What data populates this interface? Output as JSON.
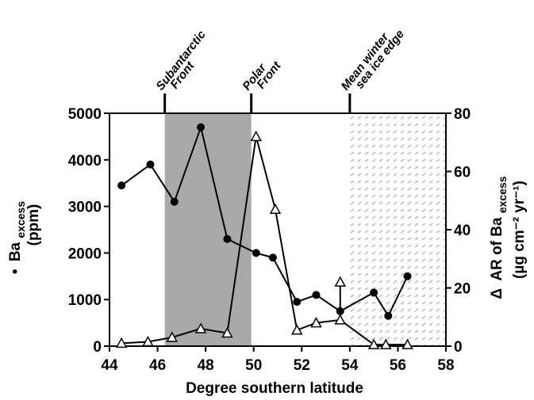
{
  "chart_data": {
    "type": "line",
    "xlabel": "Degree southern latitude",
    "ylabel_left_main": "Ba",
    "ylabel_left_sub": "excess",
    "ylabel_left_unit": "(ppm)",
    "ylabel_left_marker": "•",
    "ylabel_right_main": "AR of Ba",
    "ylabel_right_sub": "excess",
    "ylabel_right_marker": "Δ",
    "ylabel_right_unit": "(µg cm⁻² yr⁻¹)",
    "xlim": [
      44,
      58
    ],
    "ylim_left": [
      0,
      5000
    ],
    "ylim_right": [
      0,
      80
    ],
    "x_ticks": [
      "44",
      "46",
      "48",
      "50",
      "52",
      "54",
      "56",
      "58"
    ],
    "y_left_ticks": [
      "0",
      "1000",
      "2000",
      "3000",
      "4000",
      "5000"
    ],
    "y_right_ticks": [
      "0",
      "20",
      "40",
      "60",
      "80"
    ],
    "regions": [
      {
        "type": "shaded",
        "x_start": 46.3,
        "x_end": 49.9
      },
      {
        "type": "hatched",
        "x_start": 54.0,
        "x_end": 58.0
      }
    ],
    "front_markers": [
      {
        "x": 46.3,
        "lines": [
          "Subantarctic",
          "Front"
        ]
      },
      {
        "x": 49.9,
        "lines": [
          "Polar",
          "Front"
        ]
      },
      {
        "x": 54.0,
        "lines": [
          "Mean winter",
          "sea ice edge"
        ]
      }
    ],
    "series": [
      {
        "marker": "circle",
        "axis": "left",
        "x": [
          44.5,
          45.7,
          46.7,
          47.8,
          48.9,
          50.1,
          50.8,
          51.8,
          52.6,
          53.6,
          55.0,
          55.6,
          56.4
        ],
        "y": [
          3450,
          3900,
          3100,
          4700,
          2300,
          2000,
          1900,
          950,
          1100,
          750,
          1150,
          650,
          1500
        ]
      },
      {
        "marker": "triangle",
        "axis": "right",
        "x": [
          44.5,
          45.6,
          46.6,
          47.8,
          48.9,
          50.1,
          50.9,
          51.8,
          52.6,
          53.6,
          55.0,
          55.5,
          56.4
        ],
        "y": [
          1,
          1.5,
          3,
          6,
          4.5,
          72,
          47,
          5.5,
          8,
          9,
          0.5,
          0.5,
          0.5
        ]
      }
    ],
    "error_bar": {
      "x": 53.6,
      "y_low": 9,
      "y_high": 22,
      "axis": "right"
    }
  }
}
